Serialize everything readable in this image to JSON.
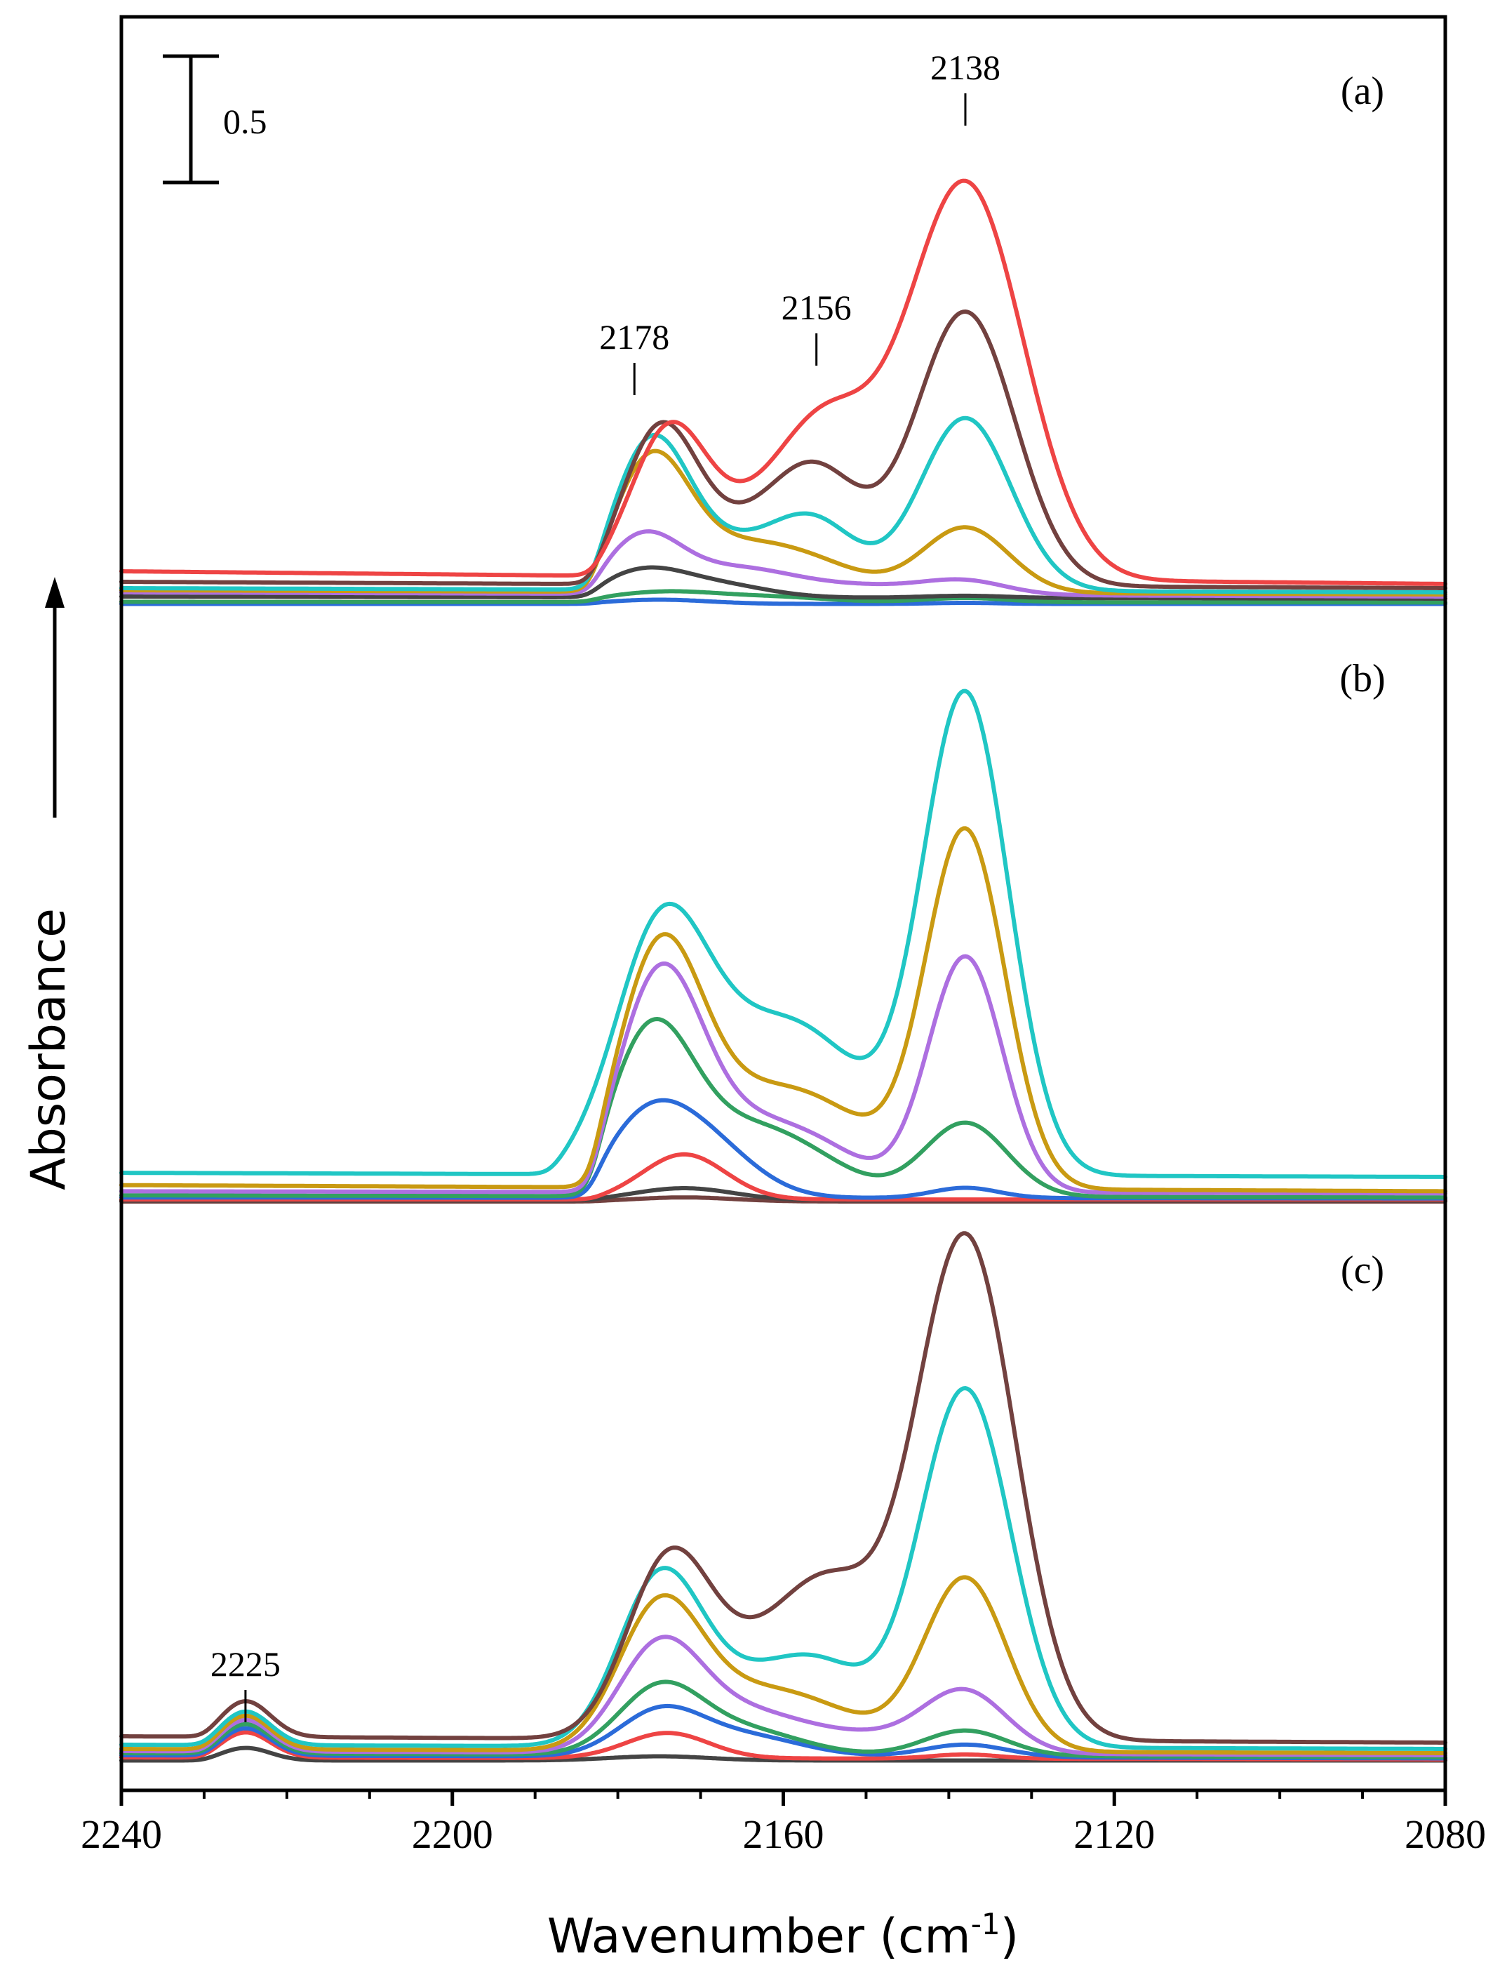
{
  "chart_data": {
    "type": "line",
    "xlabel": "Wavenumber (cm",
    "xlabel_superscript": "-1",
    "xlabel_close": ")",
    "ylabel": "Absorbance",
    "xlim": [
      2240,
      2080
    ],
    "x_ticks": [
      2240,
      2200,
      2160,
      2120,
      2080
    ],
    "x_minor_step": 10,
    "scale_bar": {
      "label": "0.5",
      "value": 0.5
    },
    "panels": [
      {
        "id": "a",
        "label": "(a)",
        "ylim": [
          0,
          2.1
        ],
        "annotations": [
          {
            "text": "2178",
            "x": 2178,
            "tip": 0.95
          },
          {
            "text": "2156",
            "x": 2156,
            "tip": 1.09
          },
          {
            "text": "2138",
            "x": 2138,
            "tip": 2.23
          }
        ],
        "series": [
          {
            "name": "a1",
            "color": "#2B6BD9",
            "baseline_left": 0.005,
            "baseline_right": 0.005,
            "onset": 2183,
            "peaks": [
              [
                2175,
                0.02,
                6
              ],
              [
                2138,
                0.005,
                4
              ]
            ]
          },
          {
            "name": "a2",
            "color": "#32A060",
            "baseline_left": 0.015,
            "baseline_right": 0.012,
            "onset": 2183,
            "peaks": [
              [
                2174,
                0.05,
                7
              ],
              [
                2160,
                0.02,
                6
              ],
              [
                2138,
                0.02,
                5
              ]
            ]
          },
          {
            "name": "a3",
            "color": "#444444",
            "baseline_left": 0.04,
            "baseline_right": 0.03,
            "onset": 2183,
            "peaks": [
              [
                2177,
                0.12,
                5
              ],
              [
                2168,
                0.06,
                6
              ],
              [
                2138,
                0.01,
                5
              ]
            ]
          },
          {
            "name": "a4",
            "color": "#AD6FE0",
            "baseline_left": 0.06,
            "baseline_right": 0.04,
            "onset": 2183,
            "peaks": [
              [
                2177,
                0.26,
                4.5
              ],
              [
                2166,
                0.12,
                7
              ],
              [
                2150,
                0.04,
                8
              ],
              [
                2138,
                0.06,
                5
              ]
            ]
          },
          {
            "name": "a5",
            "color": "#C99A12",
            "baseline_left": 0.07,
            "baseline_right": 0.05,
            "onset": 2183,
            "peaks": [
              [
                2176,
                0.58,
                4.5
              ],
              [
                2165,
                0.22,
                8
              ],
              [
                2155,
                0.06,
                6
              ],
              [
                2138,
                0.31,
                5.2
              ]
            ]
          },
          {
            "name": "a6",
            "color": "#20C6C4",
            "baseline_left": 0.08,
            "baseline_right": 0.06,
            "onset": 2183,
            "peaks": [
              [
                2176,
                0.66,
                4.5
              ],
              [
                2166,
                0.2,
                7
              ],
              [
                2156,
                0.28,
                5
              ],
              [
                2138,
                0.82,
                5.5
              ]
            ]
          },
          {
            "name": "a7",
            "color": "#72413F",
            "baseline_left": 0.11,
            "baseline_right": 0.08,
            "onset": 2183,
            "peaks": [
              [
                2175,
                0.7,
                4.5
              ],
              [
                2166,
                0.2,
                6
              ],
              [
                2156,
                0.52,
                5.5
              ],
              [
                2138,
                1.3,
                6
              ]
            ]
          },
          {
            "name": "a8",
            "color": "#EE4444",
            "baseline_left": 0.16,
            "baseline_right": 0.1,
            "onset": 2183,
            "peaks": [
              [
                2174,
                0.64,
                4.5
              ],
              [
                2166,
                0.2,
                6
              ],
              [
                2155,
                0.69,
                6
              ],
              [
                2138,
                1.88,
                7
              ]
            ]
          }
        ]
      },
      {
        "id": "b",
        "label": "(b)",
        "ylim": [
          0,
          2.5
        ],
        "series": [
          {
            "name": "b1",
            "color": "#72413F",
            "baseline_left": 0.0,
            "baseline_right": 0.0,
            "onset": 2183,
            "peaks": [
              [
                2172,
                0.02,
                6
              ]
            ]
          },
          {
            "name": "b2",
            "color": "#444444",
            "baseline_left": 0.005,
            "baseline_right": 0.005,
            "onset": 2183,
            "peaks": [
              [
                2172,
                0.06,
                6
              ]
            ]
          },
          {
            "name": "b3",
            "color": "#EE4444",
            "baseline_left": 0.01,
            "baseline_right": 0.01,
            "onset": 2183,
            "peaks": [
              [
                2172,
                0.22,
                5
              ]
            ]
          },
          {
            "name": "b4",
            "color": "#2B6BD9",
            "baseline_left": 0.02,
            "baseline_right": 0.015,
            "onset": 2183,
            "peaks": [
              [
                2177,
                0.3,
                5
              ],
              [
                2170,
                0.28,
                6
              ],
              [
                2138,
                0.05,
                4
              ]
            ]
          },
          {
            "name": "b5",
            "color": "#32A060",
            "baseline_left": 0.03,
            "baseline_right": 0.02,
            "onset": 2183,
            "peaks": [
              [
                2176,
                0.77,
                5
              ],
              [
                2165,
                0.3,
                7
              ],
              [
                2156,
                0.1,
                6
              ],
              [
                2138,
                0.36,
                5
              ]
            ]
          },
          {
            "name": "b6",
            "color": "#AD6FE0",
            "baseline_left": 0.05,
            "baseline_right": 0.04,
            "onset": 2183,
            "peaks": [
              [
                2175,
                1.0,
                5
              ],
              [
                2165,
                0.3,
                7
              ],
              [
                2155,
                0.15,
                6
              ],
              [
                2138,
                1.15,
                4.5
              ]
            ]
          },
          {
            "name": "b7",
            "color": "#C99A12",
            "baseline_left": 0.08,
            "baseline_right": 0.05,
            "onset": 2183,
            "peaks": [
              [
                2175,
                1.05,
                5
              ],
              [
                2165,
                0.38,
                8
              ],
              [
                2154,
                0.26,
                7
              ],
              [
                2138,
                1.74,
                4.8
              ]
            ]
          },
          {
            "name": "b8",
            "color": "#20C6C4",
            "baseline_left": 0.14,
            "baseline_right": 0.12,
            "onset": 2188,
            "peaks": [
              [
                2175,
                1.05,
                5.5
              ],
              [
                2165,
                0.52,
                8
              ],
              [
                2155,
                0.42,
                7
              ],
              [
                2138,
                2.34,
                5.2
              ]
            ]
          }
        ]
      },
      {
        "id": "c",
        "label": "(c)",
        "ylim": [
          0,
          2.5
        ],
        "annotations": [
          {
            "text": "2225",
            "x": 2225,
            "tip": 0.14
          }
        ],
        "series": [
          {
            "name": "c1",
            "color": "#444444",
            "baseline_left": 0.005,
            "baseline_right": 0.005,
            "onset": 2230,
            "peaks": [
              [
                2225,
                0.06,
                3
              ],
              [
                2175,
                0.02,
                6
              ]
            ]
          },
          {
            "name": "c2",
            "color": "#EE4444",
            "baseline_left": 0.02,
            "baseline_right": 0.01,
            "onset": 2230,
            "peaks": [
              [
                2225,
                0.12,
                3
              ],
              [
                2174,
                0.12,
                5
              ],
              [
                2138,
                0.02,
                4
              ]
            ]
          },
          {
            "name": "c3",
            "color": "#2B6BD9",
            "baseline_left": 0.03,
            "baseline_right": 0.015,
            "onset": 2230,
            "peaks": [
              [
                2225,
                0.13,
                3
              ],
              [
                2175,
                0.2,
                5
              ],
              [
                2165,
                0.1,
                7
              ],
              [
                2138,
                0.06,
                5
              ]
            ]
          },
          {
            "name": "c4",
            "color": "#32A060",
            "baseline_left": 0.04,
            "baseline_right": 0.02,
            "onset": 2230,
            "peaks": [
              [
                2225,
                0.14,
                3
              ],
              [
                2175,
                0.3,
                5
              ],
              [
                2165,
                0.12,
                7
              ],
              [
                2138,
                0.12,
                5
              ]
            ]
          },
          {
            "name": "c5",
            "color": "#AD6FE0",
            "baseline_left": 0.05,
            "baseline_right": 0.03,
            "onset": 2230,
            "peaks": [
              [
                2225,
                0.15,
                3
              ],
              [
                2175,
                0.48,
                5
              ],
              [
                2165,
                0.18,
                7
              ],
              [
                2150,
                0.08,
                8
              ],
              [
                2138,
                0.28,
                5
              ]
            ]
          },
          {
            "name": "c6",
            "color": "#C99A12",
            "baseline_left": 0.06,
            "baseline_right": 0.04,
            "onset": 2230,
            "peaks": [
              [
                2225,
                0.16,
                3
              ],
              [
                2175,
                0.65,
                5
              ],
              [
                2165,
                0.22,
                7
              ],
              [
                2155,
                0.15,
                7
              ],
              [
                2138,
                0.82,
                5
              ]
            ]
          },
          {
            "name": "c7",
            "color": "#20C6C4",
            "baseline_left": 0.08,
            "baseline_right": 0.06,
            "onset": 2230,
            "peaks": [
              [
                2225,
                0.16,
                3
              ],
              [
                2175,
                0.75,
                5
              ],
              [
                2165,
                0.25,
                7
              ],
              [
                2155,
                0.32,
                6
              ],
              [
                2138,
                1.7,
                5.5
              ]
            ]
          },
          {
            "name": "c8",
            "color": "#72413F",
            "baseline_left": 0.12,
            "baseline_right": 0.09,
            "onset": 2230,
            "peaks": [
              [
                2225,
                0.17,
                3
              ],
              [
                2174,
                0.78,
                5
              ],
              [
                2164,
                0.32,
                7
              ],
              [
                2154,
                0.62,
                6
              ],
              [
                2138,
                2.39,
                6
              ]
            ]
          }
        ]
      }
    ]
  }
}
